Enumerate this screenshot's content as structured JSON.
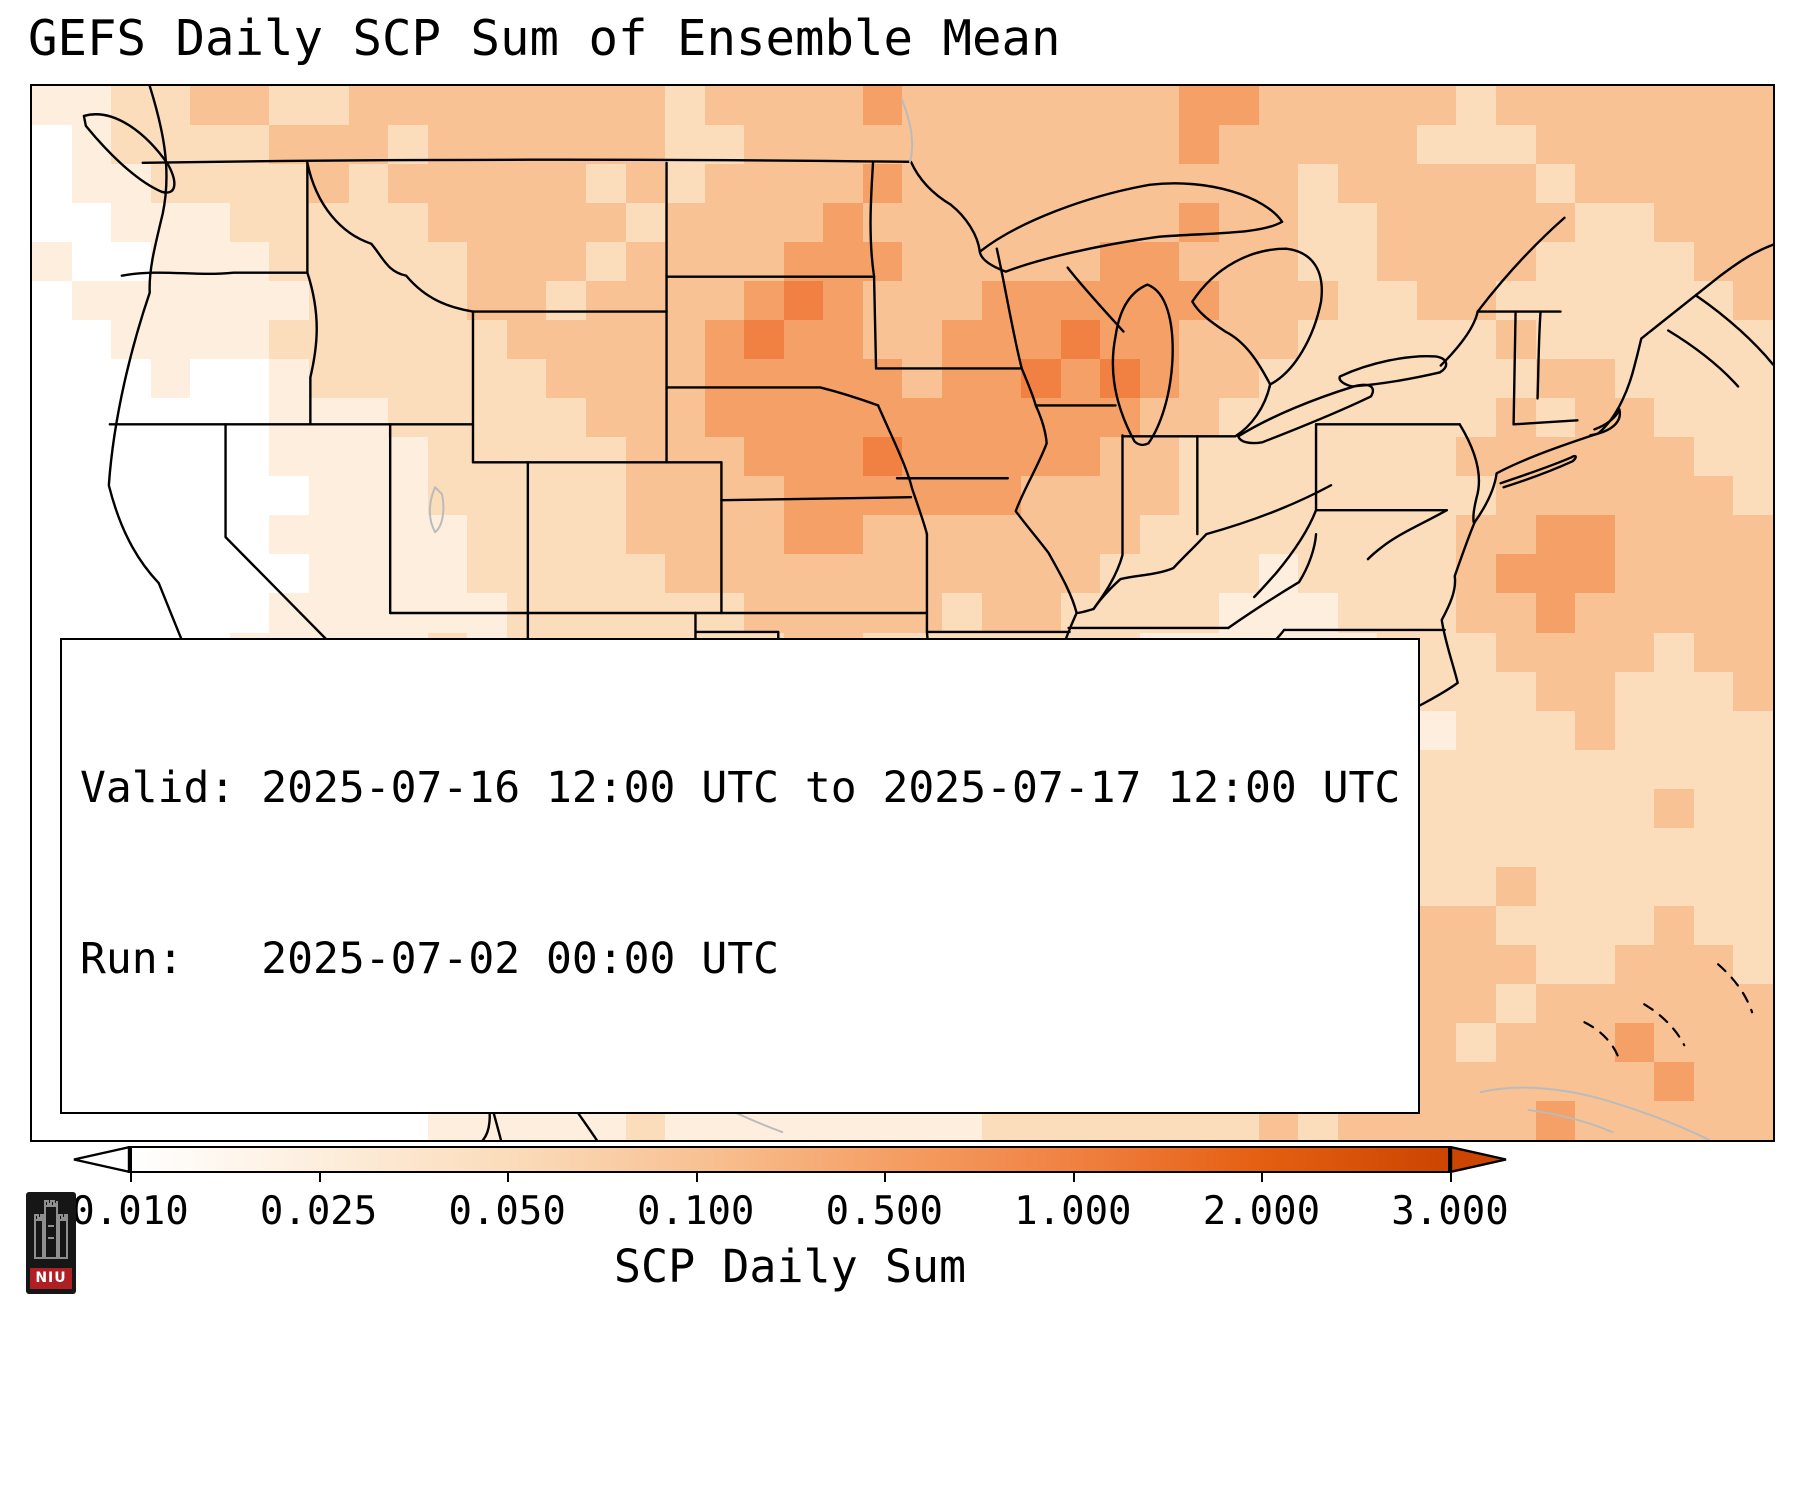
{
  "title": "GEFS Daily SCP Sum of Ensemble Mean",
  "info_box": {
    "line1": "Valid: 2025-07-16 12:00 UTC to 2025-07-17 12:00 UTC",
    "line2": "Run:   2025-07-02 00:00 UTC"
  },
  "colorbar": {
    "label": "SCP Daily Sum",
    "ticks": [
      "0.010",
      "0.025",
      "0.050",
      "0.100",
      "0.500",
      "1.000",
      "2.000",
      "3.000"
    ],
    "colors": [
      "#ffffff",
      "#fdeedd",
      "#fbdcbb",
      "#f8c294",
      "#f5a066",
      "#f08142",
      "#e55f12",
      "#cc4502"
    ],
    "extend_left_color": "#ffffff",
    "extend_right_color": "#cc4502"
  },
  "logo": {
    "text": "NIU",
    "red": "#b01f24"
  },
  "map": {
    "grid_cols": 44,
    "grid_rows": 27,
    "levels": {
      "0": "#ffffff",
      "1": "#fdeedd",
      "2": "#fbdcbb",
      "3": "#f8c294",
      "4": "#f5a066",
      "5": "#f08142",
      "6": "#e55f12",
      "7": "#cc4502"
    },
    "grid": [
      "11223322333333332333343333333443333323333333",
      "01222233323333332233333333333433333222333333",
      "01122223233333232333343333333333233333233333",
      "00111222223333323333433333333433223333322333",
      "10011122222333233334443333344333223333222233",
      "01111112222332333345433344444433322332222223",
      "00111122222233333454433444544333222223222222",
      "00010012222223333444443445454332222222332222",
      "00000011122222333444444444443322222223233222",
      "00000011112222233344454444433222222233333322",
      "00000001112222233334444443333222222223333332",
      "00000011111222233334433333332222222233443333",
      "00000001111222223333333333322221222234443333",
      "00000011111122222233333233222211122233433333",
      "00000111112122222223322222221111112223333233",
      "00000011122212222222222222211101011222332223",
      "00000111123221222222222222111000001122232222",
      "00000011112222111222222222211100001222222222",
      "00000001111221112122222332221010012222222322",
      "00000011111112111122223343222111122222222222",
      "00000001111111112112233444332222222223222222",
      "00000000011111111122223443322222222332222322",
      "00000000001111211112222332222222223333223332",
      "00000000011121111111122222222222233332333333",
      "00000000001112111111112222222222333323334333",
      "00000000000111214111111221222222223333333433",
      "00000000001111121111111122222223233333433333"
    ]
  }
}
